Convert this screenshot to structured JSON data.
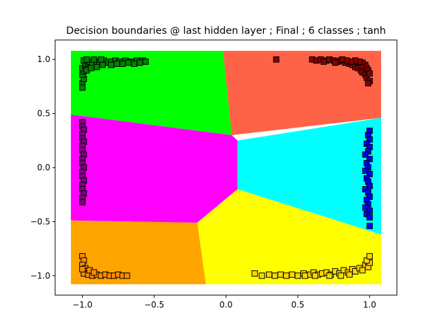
{
  "chart_data": {
    "type": "scatter",
    "title": "Decision boundaries @ last hidden layer ; Final ; 6 classes ; tanh",
    "xlabel": "",
    "ylabel": "",
    "xlim": [
      -1.19,
      1.19
    ],
    "ylim": [
      -1.18,
      1.18
    ],
    "x_ticks": [
      -1.0,
      -0.5,
      0.0,
      0.5,
      1.0
    ],
    "x_tick_labels": [
      "−1.0",
      "−0.5",
      "0.0",
      "0.5",
      "1.0"
    ],
    "y_ticks": [
      1.0,
      0.5,
      0.0,
      -0.5,
      -1.0
    ],
    "y_tick_labels": [
      "1.0",
      "0.5",
      "0.0",
      "−0.5",
      "−1.0"
    ],
    "grid": false,
    "regions": [
      {
        "color": "#00ff00",
        "polygon": [
          [
            -1.08,
            1.08
          ],
          [
            -0.02,
            1.08
          ],
          [
            0.04,
            0.3
          ],
          [
            -1.08,
            0.49
          ]
        ]
      },
      {
        "color": "#ff6347",
        "polygon": [
          [
            -0.02,
            1.08
          ],
          [
            1.08,
            1.08
          ],
          [
            1.08,
            0.46
          ],
          [
            0.04,
            0.3
          ]
        ]
      },
      {
        "color": "#ff00ff",
        "polygon": [
          [
            -1.08,
            0.49
          ],
          [
            0.04,
            0.3
          ],
          [
            0.08,
            0.25
          ],
          [
            0.08,
            -0.2
          ],
          [
            -0.2,
            -0.51
          ],
          [
            -1.08,
            -0.49
          ]
        ]
      },
      {
        "color": "#00ffff",
        "polygon": [
          [
            0.08,
            0.25
          ],
          [
            1.08,
            0.46
          ],
          [
            1.08,
            -0.62
          ],
          [
            0.08,
            -0.2
          ]
        ]
      },
      {
        "color": "#ffff00",
        "polygon": [
          [
            0.08,
            -0.2
          ],
          [
            1.08,
            -0.62
          ],
          [
            1.08,
            -1.08
          ],
          [
            -0.14,
            -1.08
          ],
          [
            -0.2,
            -0.51
          ]
        ]
      },
      {
        "color": "#ffa500",
        "polygon": [
          [
            -1.08,
            -0.49
          ],
          [
            -0.2,
            -0.51
          ],
          [
            -0.14,
            -1.08
          ],
          [
            -1.08,
            -1.08
          ]
        ]
      }
    ],
    "series": [
      {
        "color": "#008000",
        "points": [
          [
            -1.0,
            0.78
          ],
          [
            -0.99,
            0.82
          ],
          [
            -1.0,
            0.86
          ],
          [
            -0.99,
            0.89
          ],
          [
            -1.0,
            0.92
          ],
          [
            -0.98,
            0.94
          ],
          [
            -0.98,
            0.96
          ],
          [
            -0.96,
            0.97
          ],
          [
            -0.95,
            0.98
          ],
          [
            -0.93,
            0.96
          ],
          [
            -0.9,
            0.98
          ],
          [
            -0.88,
            0.97
          ],
          [
            -0.85,
            0.99
          ],
          [
            -0.82,
            0.97
          ],
          [
            -0.8,
            0.98
          ],
          [
            -0.77,
            0.99
          ],
          [
            -0.74,
            0.98
          ],
          [
            -0.7,
            0.99
          ],
          [
            -0.66,
            0.98
          ],
          [
            -0.62,
            0.99
          ],
          [
            -0.58,
            0.99
          ],
          [
            -0.56,
            0.98
          ],
          [
            -0.97,
            0.9
          ],
          [
            -0.94,
            0.92
          ],
          [
            -0.9,
            0.93
          ],
          [
            -0.86,
            0.95
          ],
          [
            -0.8,
            0.95
          ],
          [
            -0.76,
            0.96
          ],
          [
            -0.72,
            0.96
          ],
          [
            -0.68,
            0.97
          ],
          [
            -0.64,
            0.96
          ],
          [
            -0.6,
            0.97
          ],
          [
            -0.99,
            0.99
          ],
          [
            -0.97,
            1.0
          ],
          [
            -0.92,
            1.0
          ],
          [
            -0.87,
            1.0
          ],
          [
            -1.0,
            0.74
          ]
        ]
      },
      {
        "color": "#8b0000",
        "points": [
          [
            0.35,
            1.0
          ],
          [
            0.6,
            1.0
          ],
          [
            0.63,
            0.99
          ],
          [
            0.66,
            1.0
          ],
          [
            0.7,
            0.99
          ],
          [
            0.72,
            1.0
          ],
          [
            0.75,
            0.99
          ],
          [
            0.78,
            0.98
          ],
          [
            0.8,
            0.99
          ],
          [
            0.83,
            0.97
          ],
          [
            0.86,
            0.96
          ],
          [
            0.88,
            0.95
          ],
          [
            0.9,
            0.93
          ],
          [
            0.92,
            0.92
          ],
          [
            0.94,
            0.9
          ],
          [
            0.95,
            0.88
          ],
          [
            0.97,
            0.86
          ],
          [
            0.98,
            0.83
          ],
          [
            0.99,
            0.9
          ],
          [
            1.0,
            0.87
          ],
          [
            0.98,
            0.92
          ],
          [
            0.97,
            0.95
          ],
          [
            0.95,
            0.97
          ],
          [
            0.93,
            0.98
          ],
          [
            0.9,
            0.99
          ],
          [
            0.87,
            0.98
          ],
          [
            0.84,
            0.99
          ],
          [
            0.81,
            1.0
          ],
          [
            0.76,
            0.97
          ],
          [
            0.68,
            0.98
          ],
          [
            1.0,
            0.8
          ],
          [
            0.99,
            0.78
          ]
        ]
      },
      {
        "color": "#800080",
        "points": [
          [
            -1.0,
            0.42
          ],
          [
            -1.0,
            0.38
          ],
          [
            -0.99,
            0.35
          ],
          [
            -1.0,
            0.31
          ],
          [
            -1.0,
            0.27
          ],
          [
            -0.99,
            0.24
          ],
          [
            -1.0,
            0.2
          ],
          [
            -1.0,
            0.16
          ],
          [
            -0.99,
            0.12
          ],
          [
            -1.0,
            0.08
          ],
          [
            -1.0,
            0.04
          ],
          [
            -0.99,
            0.0
          ],
          [
            -1.0,
            -0.04
          ],
          [
            -1.0,
            -0.08
          ],
          [
            -0.99,
            -0.12
          ],
          [
            -1.0,
            -0.16
          ],
          [
            -1.0,
            -0.2
          ],
          [
            -0.99,
            -0.24
          ],
          [
            -1.0,
            -0.28
          ],
          [
            -1.0,
            -0.32
          ]
        ]
      },
      {
        "color": "#0000ff",
        "points": [
          [
            1.0,
            0.34
          ],
          [
            0.99,
            0.3
          ],
          [
            1.0,
            0.26
          ],
          [
            0.98,
            0.22
          ],
          [
            1.0,
            0.19
          ],
          [
            0.99,
            0.15
          ],
          [
            0.97,
            0.12
          ],
          [
            1.0,
            0.08
          ],
          [
            0.98,
            0.04
          ],
          [
            0.99,
            0.0
          ],
          [
            0.97,
            -0.03
          ],
          [
            1.0,
            -0.06
          ],
          [
            0.98,
            -0.1
          ],
          [
            0.99,
            -0.13
          ],
          [
            1.0,
            -0.17
          ],
          [
            0.97,
            -0.2
          ],
          [
            0.99,
            -0.23
          ],
          [
            1.0,
            -0.27
          ],
          [
            0.98,
            -0.3
          ],
          [
            0.99,
            -0.34
          ],
          [
            0.97,
            -0.37
          ],
          [
            1.0,
            -0.4
          ],
          [
            0.98,
            -0.43
          ],
          [
            1.0,
            -0.46
          ],
          [
            1.0,
            -0.54
          ]
        ]
      },
      {
        "color": "#ff8c00",
        "points": [
          [
            -1.0,
            -0.82
          ],
          [
            -0.99,
            -0.86
          ],
          [
            -1.0,
            -0.9
          ],
          [
            -0.98,
            -0.93
          ],
          [
            -0.97,
            -0.96
          ],
          [
            -0.99,
            -0.98
          ],
          [
            -0.96,
            -0.99
          ],
          [
            -0.93,
            -1.0
          ],
          [
            -0.9,
            -0.99
          ],
          [
            -0.87,
            -1.0
          ],
          [
            -0.84,
            -0.99
          ],
          [
            -0.81,
            -1.0
          ],
          [
            -0.78,
            -1.0
          ],
          [
            -0.75,
            -0.99
          ],
          [
            -0.72,
            -1.0
          ],
          [
            -0.69,
            -1.0
          ],
          [
            -0.95,
            -0.95
          ],
          [
            -0.92,
            -0.97
          ],
          [
            -1.0,
            -0.94
          ]
        ]
      },
      {
        "color": "#ffd700",
        "points": [
          [
            0.2,
            -0.98
          ],
          [
            0.25,
            -1.0
          ],
          [
            0.3,
            -0.99
          ],
          [
            0.34,
            -1.0
          ],
          [
            0.38,
            -0.99
          ],
          [
            0.42,
            -1.0
          ],
          [
            0.46,
            -0.99
          ],
          [
            0.5,
            -1.0
          ],
          [
            0.54,
            -0.98
          ],
          [
            0.58,
            -0.99
          ],
          [
            0.61,
            -0.97
          ],
          [
            0.64,
            -0.99
          ],
          [
            0.67,
            -0.98
          ],
          [
            0.7,
            -0.97
          ],
          [
            0.73,
            -0.99
          ],
          [
            0.76,
            -0.96
          ],
          [
            0.79,
            -0.98
          ],
          [
            0.82,
            -0.95
          ],
          [
            0.85,
            -0.97
          ],
          [
            0.88,
            -0.94
          ],
          [
            0.9,
            -0.96
          ],
          [
            0.93,
            -0.93
          ],
          [
            0.95,
            -0.95
          ],
          [
            0.97,
            -0.9
          ],
          [
            0.99,
            -0.92
          ],
          [
            1.0,
            -0.88
          ],
          [
            0.98,
            -0.86
          ],
          [
            1.0,
            -0.82
          ],
          [
            0.72,
            -1.0
          ],
          [
            0.8,
            -1.0
          ],
          [
            0.86,
            -0.99
          ],
          [
            0.55,
            -1.0
          ],
          [
            0.62,
            -1.0
          ]
        ]
      }
    ]
  }
}
